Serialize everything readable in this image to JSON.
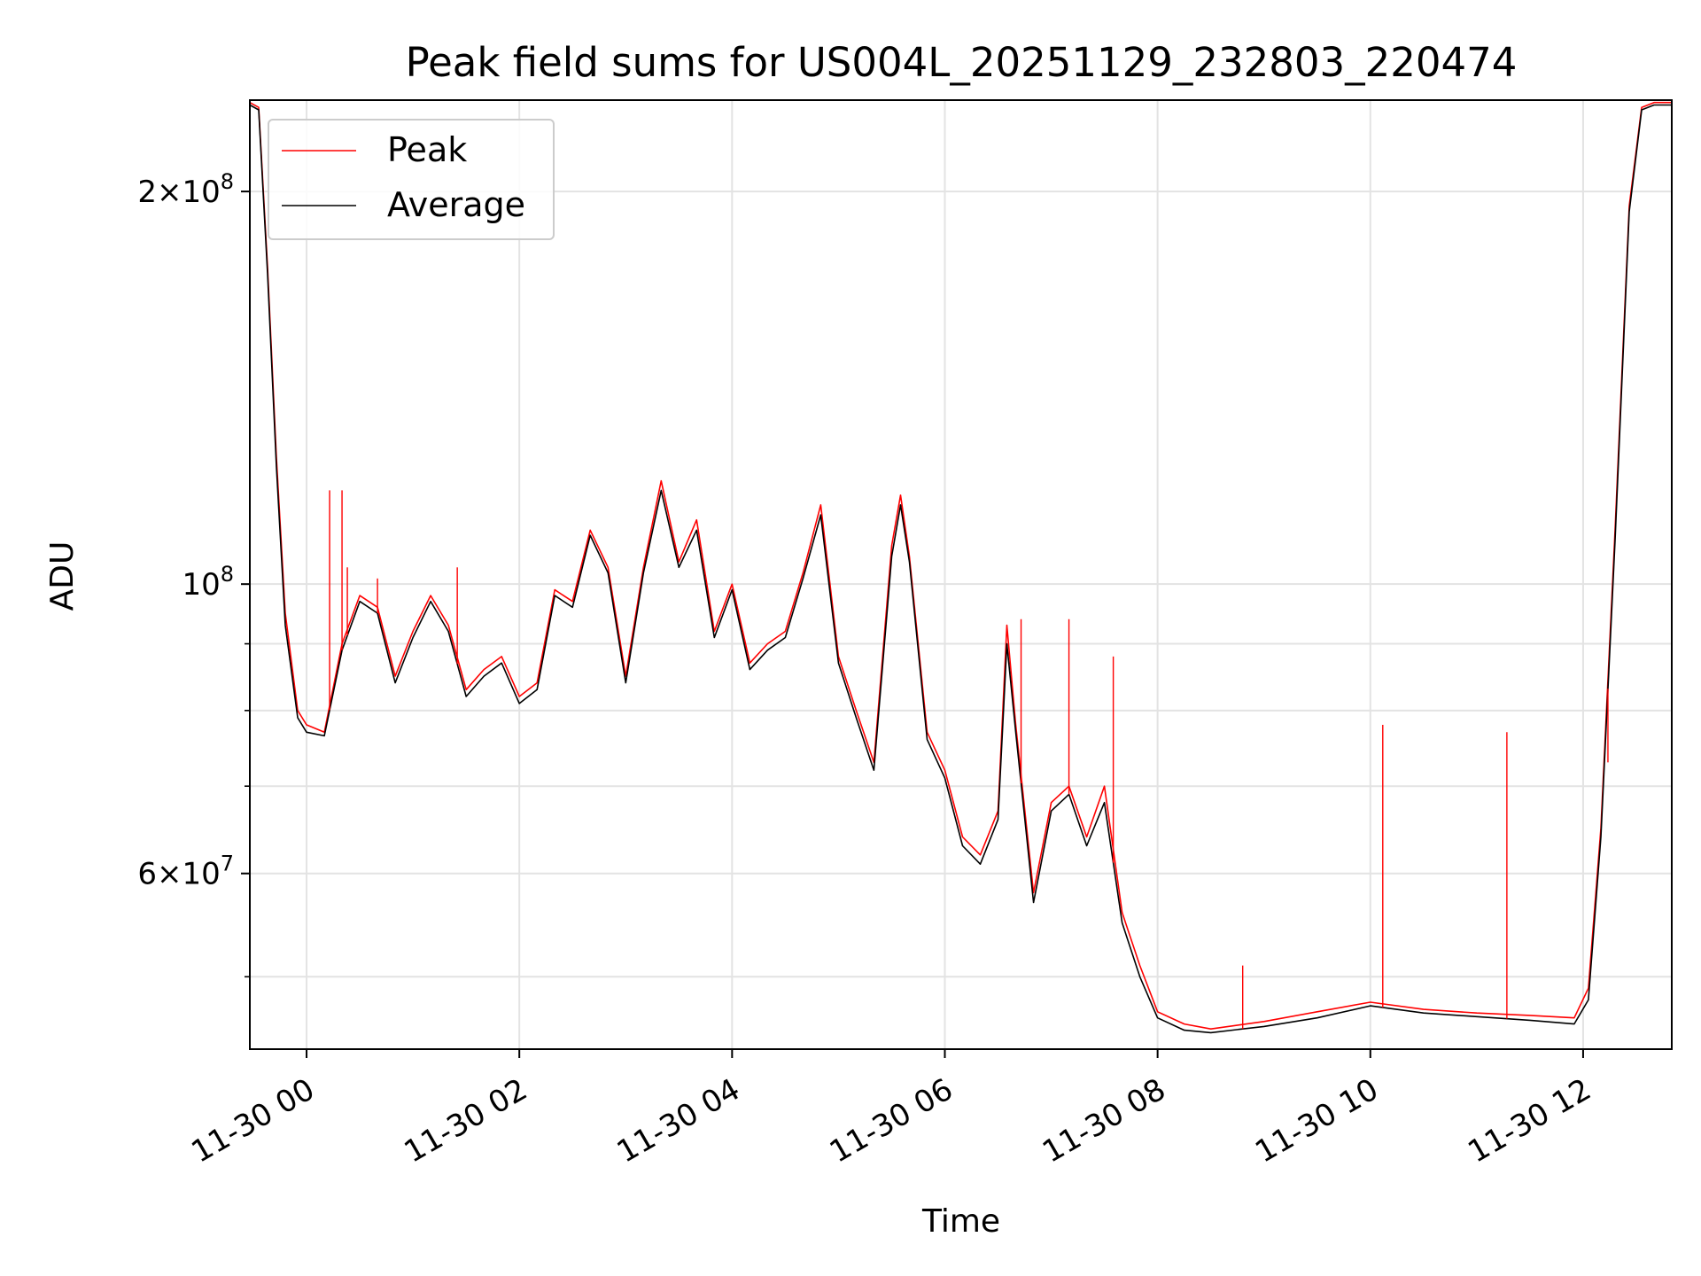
{
  "chart_data": {
    "type": "line",
    "title": "Peak field sums for US004L_20251129_232803_220474",
    "xlabel": "Time",
    "ylabel": "ADU",
    "y_scale": "log",
    "ylim": [
      44000000,
      235000000
    ],
    "xlim": [
      "11-29 23:28",
      "11-30 12:50"
    ],
    "grid": true,
    "legend_position": "upper left",
    "x_tick_labels": [
      "11-30 00",
      "11-30 02",
      "11-30 04",
      "11-30 06",
      "11-30 08",
      "11-30 10",
      "11-30 12"
    ],
    "y_tick_labels": [
      {
        "value": 200000000,
        "base": "2",
        "exp": "8"
      },
      {
        "value": 100000000,
        "base": "",
        "exp": "8"
      },
      {
        "value": 60000000,
        "base": "6",
        "exp": "7"
      }
    ],
    "y_minor_ticks": [
      70000000,
      80000000,
      90000000,
      300000000,
      400000000,
      50000000
    ],
    "x": [
      "11-29 23:28",
      "11-29 23:33",
      "11-29 23:38",
      "11-29 23:43",
      "11-29 23:48",
      "11-29 23:55",
      "11-30 00:00",
      "11-30 00:10",
      "11-30 00:20",
      "11-30 00:30",
      "11-30 00:40",
      "11-30 00:50",
      "11-30 01:00",
      "11-30 01:10",
      "11-30 01:20",
      "11-30 01:30",
      "11-30 01:40",
      "11-30 01:50",
      "11-30 02:00",
      "11-30 02:10",
      "11-30 02:20",
      "11-30 02:30",
      "11-30 02:40",
      "11-30 02:50",
      "11-30 03:00",
      "11-30 03:10",
      "11-30 03:20",
      "11-30 03:30",
      "11-30 03:40",
      "11-30 03:50",
      "11-30 04:00",
      "11-30 04:10",
      "11-30 04:20",
      "11-30 04:30",
      "11-30 04:40",
      "11-30 04:50",
      "11-30 05:00",
      "11-30 05:10",
      "11-30 05:20",
      "11-30 05:30",
      "11-30 05:35",
      "11-30 05:40",
      "11-30 05:50",
      "11-30 06:00",
      "11-30 06:10",
      "11-30 06:20",
      "11-30 06:30",
      "11-30 06:35",
      "11-30 06:40",
      "11-30 06:50",
      "11-30 07:00",
      "11-30 07:10",
      "11-30 07:20",
      "11-30 07:30",
      "11-30 07:40",
      "11-30 07:50",
      "11-30 08:00",
      "11-30 08:15",
      "11-30 08:30",
      "11-30 09:00",
      "11-30 09:30",
      "11-30 10:00",
      "11-30 10:30",
      "11-30 11:00",
      "11-30 11:30",
      "11-30 11:55",
      "11-30 12:03",
      "11-30 12:10",
      "11-30 12:18",
      "11-30 12:26",
      "11-30 12:33",
      "11-30 12:40",
      "11-30 12:50"
    ],
    "series": [
      {
        "name": "Peak",
        "color": "#ff0000",
        "values": [
          234000000,
          232000000,
          175000000,
          125000000,
          95000000,
          80000000,
          78000000,
          77000000,
          90000000,
          98000000,
          96000000,
          85000000,
          92000000,
          98000000,
          93000000,
          83000000,
          86000000,
          88000000,
          82000000,
          84000000,
          99000000,
          97000000,
          110000000,
          103000000,
          85000000,
          103000000,
          120000000,
          104000000,
          112000000,
          92000000,
          100000000,
          87000000,
          90000000,
          92000000,
          102000000,
          115000000,
          88000000,
          80000000,
          73000000,
          107000000,
          117000000,
          105000000,
          77000000,
          72000000,
          64000000,
          62000000,
          67000000,
          93000000,
          78000000,
          58000000,
          68000000,
          70000000,
          64000000,
          70000000,
          56000000,
          51000000,
          47000000,
          46000000,
          45600000,
          46200000,
          47000000,
          47800000,
          47200000,
          46900000,
          46700000,
          46500000,
          49000000,
          65000000,
          110000000,
          195000000,
          232000000,
          234000000,
          234000000
        ]
      },
      {
        "name": "Average",
        "color": "#000000",
        "values": [
          233000000,
          231000000,
          173000000,
          123000000,
          93000000,
          79000000,
          77000000,
          76500000,
          89000000,
          97000000,
          95000000,
          84000000,
          91000000,
          97000000,
          92000000,
          82000000,
          85000000,
          87000000,
          81000000,
          83000000,
          98000000,
          96000000,
          109000000,
          102000000,
          84000000,
          102000000,
          118000000,
          103000000,
          110000000,
          91000000,
          99000000,
          86000000,
          89000000,
          91000000,
          101000000,
          113000000,
          87000000,
          79000000,
          72000000,
          105000000,
          115000000,
          104000000,
          76000000,
          71000000,
          63000000,
          61000000,
          66000000,
          90000000,
          77000000,
          57000000,
          67000000,
          69000000,
          63000000,
          68000000,
          55000000,
          50000000,
          46500000,
          45500000,
          45300000,
          45800000,
          46500000,
          47500000,
          46900000,
          46600000,
          46300000,
          46000000,
          48000000,
          64000000,
          108000000,
          193000000,
          231000000,
          233000000,
          233000000
        ]
      }
    ],
    "peak_spikes": [
      {
        "x": "11-30 00:13",
        "y": 118000000
      },
      {
        "x": "11-30 00:20",
        "y": 118000000
      },
      {
        "x": "11-30 00:23",
        "y": 103000000
      },
      {
        "x": "11-30 00:40",
        "y": 101000000
      },
      {
        "x": "11-30 01:25",
        "y": 103000000
      },
      {
        "x": "11-30 06:43",
        "y": 94000000
      },
      {
        "x": "11-30 07:10",
        "y": 94000000
      },
      {
        "x": "11-30 07:35",
        "y": 88000000
      },
      {
        "x": "11-30 08:48",
        "y": 51000000
      },
      {
        "x": "11-30 10:07",
        "y": 78000000
      },
      {
        "x": "11-30 11:17",
        "y": 77000000
      },
      {
        "x": "11-30 12:14",
        "y": 73000000
      }
    ]
  }
}
